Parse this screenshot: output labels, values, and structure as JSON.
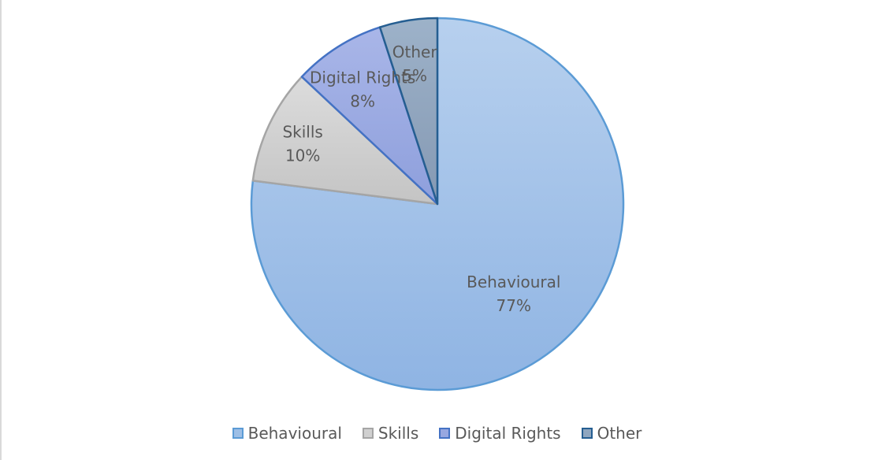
{
  "chart_data": {
    "type": "pie",
    "title": "",
    "start_angle_deg": 0,
    "direction": "clockwise",
    "legend_position": "bottom",
    "slices": [
      {
        "label": "Behavioural",
        "value": 77,
        "display": "77%",
        "fill": "#9dbfe6",
        "stroke": "#5b9bd5"
      },
      {
        "label": "Skills",
        "value": 10,
        "display": "10%",
        "fill": "#d0d0d0",
        "stroke": "#a5a5a5"
      },
      {
        "label": "Digital Rights",
        "value": 8,
        "display": "8%",
        "fill": "#97a7e0",
        "stroke": "#4472c4"
      },
      {
        "label": "Other",
        "value": 5,
        "display": "5%",
        "fill": "#8fa6bf",
        "stroke": "#255e91"
      }
    ]
  },
  "legend": {
    "items": [
      {
        "label": "Behavioural"
      },
      {
        "label": "Skills"
      },
      {
        "label": "Digital Rights"
      },
      {
        "label": "Other"
      }
    ]
  }
}
